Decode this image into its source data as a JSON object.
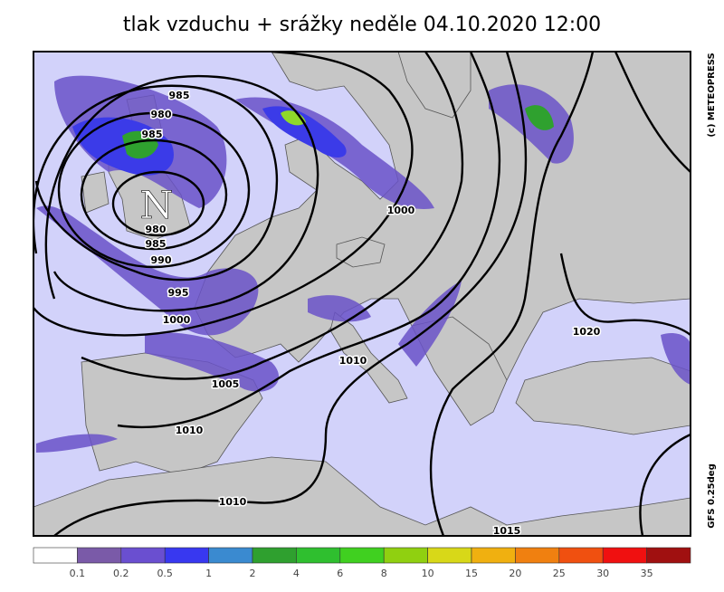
{
  "header": {
    "title": "tlak vzduchu + srážky  neděle 04.10.2020 12:00"
  },
  "map": {
    "low_label": "N",
    "credit": "(c) METEOPRESS",
    "model": "GFS 0.25deg",
    "isobar_labels": [
      "985",
      "980",
      "985",
      "980",
      "985",
      "990",
      "995",
      "1000",
      "1000",
      "1005",
      "1010",
      "1010",
      "1010",
      "1020",
      "1015"
    ]
  },
  "legend": {
    "colors": [
      "#ffffff",
      "#7a5aa8",
      "#6a4fd0",
      "#3838f0",
      "#3a8ad0",
      "#2fa02f",
      "#2fbf2f",
      "#40d020",
      "#90d010",
      "#d8d818",
      "#f0b010",
      "#f08010",
      "#f05010",
      "#f01010",
      "#a01010"
    ],
    "ticks": [
      "0.1",
      "0.2",
      "0.5",
      "1",
      "2",
      "4",
      "6",
      "8",
      "10",
      "15",
      "20",
      "25",
      "30",
      "35"
    ]
  }
}
